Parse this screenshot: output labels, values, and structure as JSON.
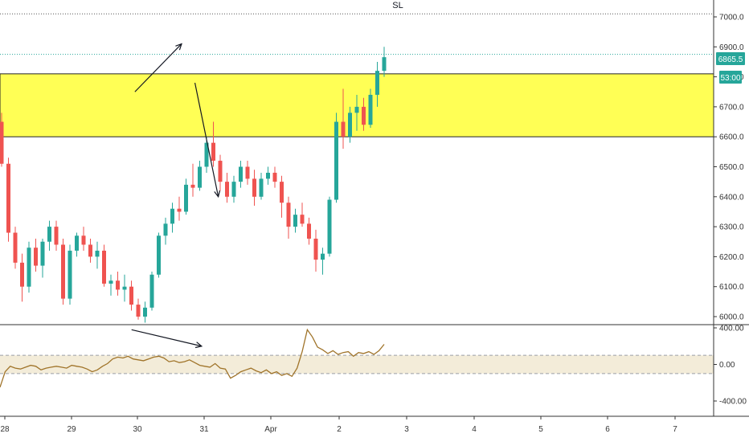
{
  "chart_data": [
    {
      "type": "candlestick",
      "title": "SL",
      "y_axis": {
        "ticks": [
          "7000.0",
          "6900.0",
          "6800.0",
          "6700.0",
          "6600.0",
          "6500.0",
          "6400.0",
          "6300.0",
          "6200.0",
          "6100.0",
          "6000.0"
        ],
        "range": [
          5975,
          7050
        ]
      },
      "x_axis": {
        "ticks": [
          "28",
          "29",
          "30",
          "31",
          "Apr",
          "2",
          "3",
          "4",
          "5",
          "6",
          "7"
        ]
      },
      "price_label": "6865.5",
      "countdown_label": "53:00",
      "zone": {
        "low": 6600,
        "high": 6810,
        "color": "#ffff55"
      },
      "dotted_levels": [
        7010,
        6875
      ],
      "up_color": "#26a69a",
      "down_color": "#ef5350",
      "candles": [
        [
          6650,
          6680,
          6500,
          6510
        ],
        [
          6510,
          6530,
          6250,
          6280
        ],
        [
          6280,
          6300,
          6160,
          6180
        ],
        [
          6180,
          6210,
          6050,
          6100
        ],
        [
          6100,
          6250,
          6080,
          6230
        ],
        [
          6230,
          6260,
          6150,
          6170
        ],
        [
          6170,
          6260,
          6130,
          6250
        ],
        [
          6250,
          6320,
          6220,
          6300
        ],
        [
          6300,
          6320,
          6220,
          6240
        ],
        [
          6240,
          6260,
          6040,
          6060
        ],
        [
          6060,
          6240,
          6040,
          6220
        ],
        [
          6220,
          6280,
          6200,
          6270
        ],
        [
          6270,
          6300,
          6220,
          6240
        ],
        [
          6240,
          6260,
          6180,
          6200
        ],
        [
          6200,
          6250,
          6160,
          6220
        ],
        [
          6220,
          6240,
          6100,
          6110
        ],
        [
          6110,
          6140,
          6070,
          6120
        ],
        [
          6120,
          6150,
          6070,
          6090
        ],
        [
          6090,
          6140,
          6050,
          6100
        ],
        [
          6100,
          6120,
          6020,
          6040
        ],
        [
          6040,
          6060,
          5990,
          6000
        ],
        [
          6000,
          6050,
          5980,
          6030
        ],
        [
          6030,
          6150,
          6020,
          6140
        ],
        [
          6140,
          6280,
          6130,
          6270
        ],
        [
          6270,
          6330,
          6240,
          6310
        ],
        [
          6310,
          6380,
          6280,
          6360
        ],
        [
          6360,
          6400,
          6320,
          6350
        ],
        [
          6350,
          6460,
          6340,
          6440
        ],
        [
          6440,
          6510,
          6400,
          6430
        ],
        [
          6430,
          6520,
          6420,
          6500
        ],
        [
          6500,
          6600,
          6480,
          6580
        ],
        [
          6580,
          6650,
          6500,
          6520
        ],
        [
          6520,
          6540,
          6420,
          6450
        ],
        [
          6450,
          6480,
          6380,
          6400
        ],
        [
          6400,
          6470,
          6380,
          6450
        ],
        [
          6450,
          6520,
          6430,
          6500
        ],
        [
          6500,
          6520,
          6440,
          6460
        ],
        [
          6460,
          6490,
          6370,
          6400
        ],
        [
          6400,
          6480,
          6390,
          6460
        ],
        [
          6460,
          6500,
          6440,
          6480
        ],
        [
          6480,
          6500,
          6430,
          6450
        ],
        [
          6450,
          6470,
          6330,
          6380
        ],
        [
          6380,
          6400,
          6260,
          6300
        ],
        [
          6300,
          6360,
          6280,
          6340
        ],
        [
          6340,
          6380,
          6300,
          6310
        ],
        [
          6310,
          6330,
          6240,
          6260
        ],
        [
          6260,
          6290,
          6150,
          6190
        ],
        [
          6190,
          6230,
          6140,
          6210
        ],
        [
          6210,
          6400,
          6200,
          6390
        ],
        [
          6390,
          6680,
          6380,
          6650
        ],
        [
          6650,
          6760,
          6560,
          6600
        ],
        [
          6600,
          6700,
          6580,
          6680
        ],
        [
          6680,
          6740,
          6620,
          6700
        ],
        [
          6700,
          6730,
          6620,
          6640
        ],
        [
          6640,
          6760,
          6630,
          6740
        ],
        [
          6740,
          6850,
          6700,
          6820
        ],
        [
          6820,
          6900,
          6800,
          6865.5
        ]
      ]
    },
    {
      "type": "line",
      "y_axis": {
        "ticks": [
          "400.00",
          "0.00",
          "-400.00"
        ],
        "range": [
          -560,
          420
        ]
      },
      "band": {
        "low": -100,
        "high": 100
      },
      "series_color": "#a0742a",
      "band_color": "#f3ecd9",
      "values": [
        -250,
        -80,
        -20,
        -40,
        -50,
        -30,
        -10,
        -20,
        -60,
        -40,
        -30,
        -20,
        -30,
        -40,
        -10,
        -20,
        -30,
        -50,
        -80,
        -60,
        -20,
        10,
        60,
        80,
        70,
        90,
        60,
        50,
        40,
        60,
        80,
        90,
        70,
        30,
        40,
        20,
        30,
        50,
        20,
        -10,
        -20,
        -30,
        10,
        -40,
        -50,
        -150,
        -120,
        -80,
        -60,
        -40,
        -70,
        -90,
        -60,
        -100,
        -80,
        -120,
        -100,
        -130,
        -40,
        140,
        380,
        300,
        190,
        160,
        120,
        150,
        110,
        130,
        140,
        90,
        130,
        120,
        140,
        110,
        150,
        220
      ]
    }
  ],
  "annotations": [
    {
      "type": "arrow",
      "from": [
        1.95,
        6750
      ],
      "to": [
        2.65,
        6910
      ]
    },
    {
      "type": "arrow",
      "from": [
        2.85,
        6780
      ],
      "to": [
        3.2,
        6400
      ]
    },
    {
      "type": "arrow",
      "from": [
        1.9,
        380
      ],
      "to": [
        2.95,
        200
      ]
    }
  ]
}
